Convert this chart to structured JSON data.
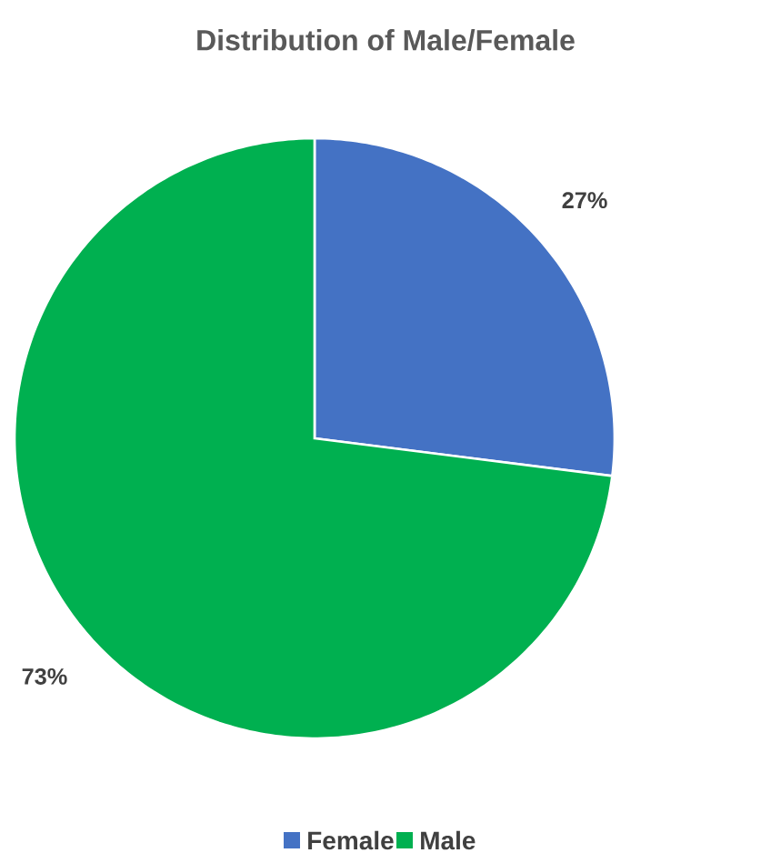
{
  "chart_data": {
    "type": "pie",
    "title": "Distribution of Male/Female",
    "categories": [
      "Female",
      "Male"
    ],
    "values": [
      27,
      73
    ],
    "colors": [
      "#4472c4",
      "#00b050"
    ],
    "value_labels": [
      "27%",
      "73%"
    ],
    "legend": "bottom"
  }
}
